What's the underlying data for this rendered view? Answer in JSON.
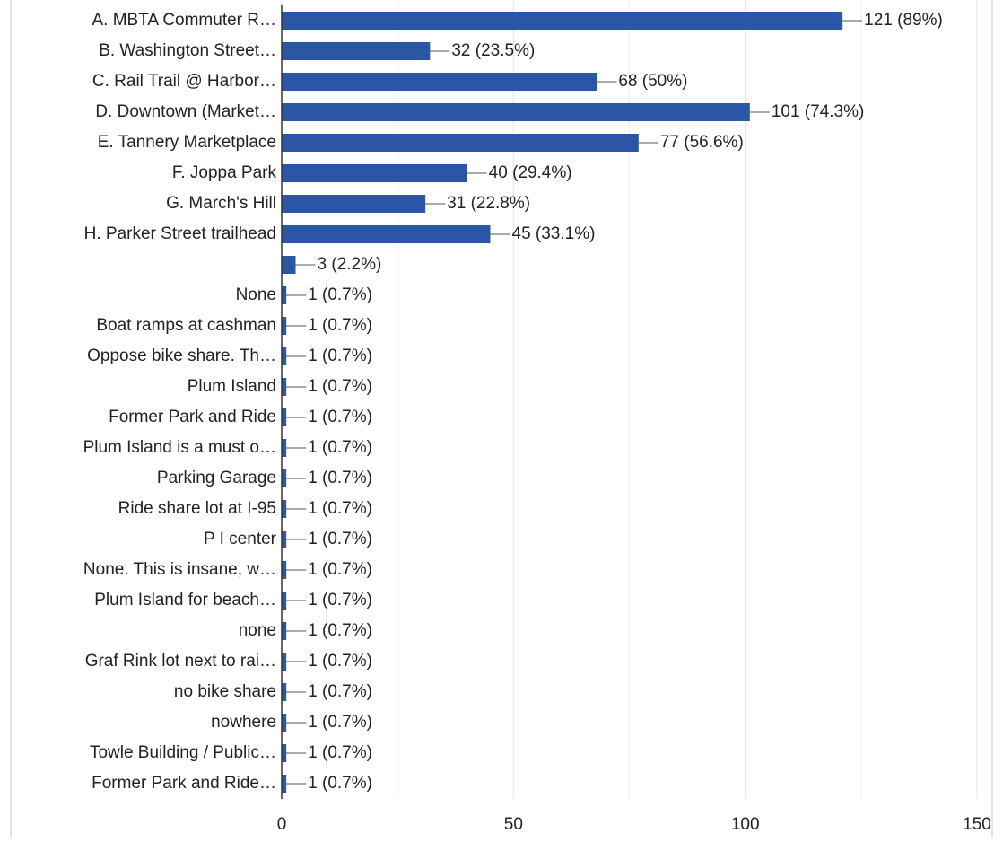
{
  "chart_data": {
    "type": "bar",
    "orientation": "horizontal",
    "categories": [
      "A. MBTA Commuter R…",
      "B. Washington Street…",
      "C. Rail Trail @ Harbor…",
      "D. Downtown (Market…",
      "E. Tannery Marketplace",
      "F. Joppa Park",
      "G. March's Hill",
      "H. Parker Street trailhead",
      null,
      "None",
      "Boat ramps at cashman",
      "Oppose bike share. Th…",
      "Plum Island",
      "Former Park and Ride",
      "Plum Island is a must o…",
      "Parking Garage",
      "Ride share lot at I-95",
      "P I center",
      "None. This is insane, w…",
      "Plum Island for beach…",
      "none",
      "Graf Rink lot next to rai…",
      "no bike share",
      "nowhere",
      "Towle Building / Public…",
      "Former Park and Ride…"
    ],
    "values": [
      121,
      32,
      68,
      101,
      77,
      40,
      31,
      45,
      3,
      1,
      1,
      1,
      1,
      1,
      1,
      1,
      1,
      1,
      1,
      1,
      1,
      1,
      1,
      1,
      1,
      1
    ],
    "value_labels": [
      "121 (89%)",
      "32 (23.5%)",
      "68 (50%)",
      "101 (74.3%)",
      "77 (56.6%)",
      "40 (29.4%)",
      "31 (22.8%)",
      "45 (33.1%)",
      "3 (2.2%)",
      "1 (0.7%)",
      "1 (0.7%)",
      "1 (0.7%)",
      "1 (0.7%)",
      "1 (0.7%)",
      "1 (0.7%)",
      "1 (0.7%)",
      "1 (0.7%)",
      "1 (0.7%)",
      "1 (0.7%)",
      "1 (0.7%)",
      "1 (0.7%)",
      "1 (0.7%)",
      "1 (0.7%)",
      "1 (0.7%)",
      "1 (0.7%)",
      "1 (0.7%)"
    ],
    "color": "#2b56a5",
    "xlim": [
      0,
      150
    ],
    "xticks": [
      0,
      50,
      100,
      150
    ],
    "minor_xticks": [
      25,
      75,
      125
    ],
    "grid": true
  }
}
